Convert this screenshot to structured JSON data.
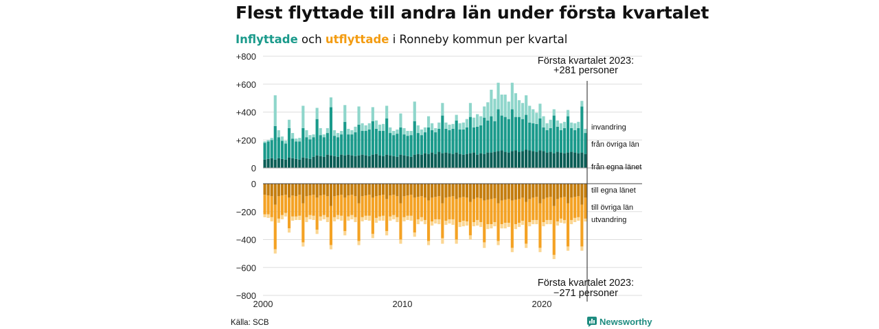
{
  "header": {
    "title": "Flest flyttade till andra län under första kvartalet",
    "subtitle_in": "Inflyttade",
    "subtitle_and": "och",
    "subtitle_out": "utflyttade",
    "subtitle_rest": "i Ronneby kommun per kvartal"
  },
  "footer": {
    "source": "Källa: SCB",
    "brand": "Newsworthy"
  },
  "colors": {
    "in_own": "#0b5e56",
    "in_other": "#1a9a8b",
    "in_immigration": "#8fd6cb",
    "out_own": "#c47d0e",
    "out_other": "#f4a224",
    "out_emigration": "#fbd692",
    "gridline": "#dddddd",
    "marker": "#444444",
    "brand": "#1e8c80"
  },
  "chart_data": {
    "type": "bar",
    "stacked": true,
    "unit": "quarter",
    "x_start": "2000 Q1",
    "x_end": "2023 Q1",
    "x_ticks": [
      "2000",
      "2010",
      "2020"
    ],
    "y_top": {
      "ylim": [
        0,
        800
      ],
      "ticks": [
        "0",
        "+200",
        "+400",
        "+600",
        "+800"
      ]
    },
    "y_bottom": {
      "ylim": [
        -800,
        0
      ],
      "ticks": [
        "0",
        "−200",
        "−400",
        "−600",
        "−800"
      ]
    },
    "grid": true,
    "series_labels": {
      "in_own": "från egna länet",
      "in_other": "från övriga län",
      "in_immigration": "invandring",
      "out_own": "till egna länet",
      "out_other": "till övriga län",
      "out_emigration": "utvandring"
    },
    "annotation_top": {
      "line1": "Första kvartalet 2023:",
      "line2": "+281 personer"
    },
    "annotation_bottom": {
      "line1": "Första kvartalet 2023:",
      "line2": "−271 personer"
    },
    "in_own": [
      60,
      65,
      70,
      60,
      70,
      65,
      60,
      75,
      70,
      65,
      60,
      75,
      70,
      65,
      80,
      90,
      85,
      80,
      95,
      90,
      85,
      80,
      95,
      90,
      95,
      90,
      85,
      90,
      95,
      90,
      85,
      95,
      100,
      90,
      85,
      95,
      90,
      85,
      80,
      95,
      90,
      85,
      80,
      95,
      100,
      95,
      105,
      100,
      110,
      100,
      115,
      105,
      110,
      105,
      100,
      110,
      100,
      95,
      100,
      105,
      110,
      95,
      105,
      100,
      110,
      110,
      115,
      120,
      125,
      115,
      110,
      120,
      125,
      115,
      120,
      130,
      125,
      120,
      115,
      125,
      120,
      110,
      115,
      105,
      115,
      110,
      105,
      110,
      115,
      110,
      105,
      110,
      100
    ],
    "in_other": [
      120,
      125,
      130,
      240,
      150,
      130,
      115,
      210,
      140,
      125,
      130,
      210,
      150,
      140,
      140,
      260,
      150,
      140,
      155,
      345,
      145,
      140,
      145,
      240,
      145,
      150,
      170,
      220,
      170,
      175,
      190,
      240,
      180,
      175,
      180,
      260,
      160,
      150,
      165,
      195,
      150,
      145,
      155,
      240,
      150,
      140,
      150,
      190,
      160,
      155,
      165,
      270,
      170,
      165,
      180,
      230,
      175,
      180,
      190,
      260,
      180,
      200,
      200,
      260,
      230,
      260,
      220,
      300,
      250,
      250,
      240,
      300,
      240,
      250,
      230,
      250,
      200,
      200,
      200,
      230,
      170,
      160,
      170,
      270,
      180,
      160,
      180,
      260,
      170,
      160,
      180,
      330,
      150
    ],
    "in_immigration": [
      10,
      10,
      15,
      220,
      50,
      30,
      20,
      60,
      40,
      20,
      25,
      160,
      50,
      30,
      20,
      80,
      50,
      20,
      35,
      70,
      40,
      30,
      25,
      120,
      40,
      30,
      40,
      130,
      55,
      40,
      45,
      100,
      60,
      45,
      50,
      90,
      40,
      30,
      30,
      100,
      45,
      35,
      30,
      140,
      55,
      40,
      35,
      80,
      50,
      30,
      45,
      90,
      45,
      40,
      35,
      40,
      45,
      50,
      60,
      100,
      70,
      90,
      65,
      80,
      130,
      190,
      160,
      190,
      150,
      160,
      125,
      190,
      170,
      120,
      115,
      140,
      120,
      100,
      80,
      105,
      80,
      50,
      60,
      45,
      45,
      50,
      45,
      45,
      40,
      50,
      45,
      40,
      30
    ],
    "out_own": [
      -80,
      -85,
      -90,
      -150,
      -90,
      -85,
      -80,
      -100,
      -85,
      -90,
      -80,
      -140,
      -90,
      -85,
      -80,
      -100,
      -85,
      -80,
      -90,
      -160,
      -90,
      -85,
      -80,
      -100,
      -85,
      -80,
      -90,
      -140,
      -90,
      -85,
      -80,
      -100,
      -90,
      -85,
      -80,
      -110,
      -85,
      -80,
      -90,
      -140,
      -90,
      -85,
      -80,
      -100,
      -95,
      -90,
      -100,
      -120,
      -100,
      -95,
      -90,
      -140,
      -100,
      -95,
      -90,
      -110,
      -100,
      -95,
      -100,
      -130,
      -110,
      -100,
      -105,
      -120,
      -115,
      -110,
      -105,
      -140,
      -120,
      -115,
      -110,
      -120,
      -115,
      -110,
      -100,
      -130,
      -110,
      -100,
      -95,
      -140,
      -110,
      -100,
      -95,
      -160,
      -110,
      -100,
      -95,
      -140,
      -100,
      -95,
      -90,
      -150,
      -100
    ],
    "out_other": [
      -140,
      -135,
      -150,
      -320,
      -160,
      -140,
      -130,
      -220,
      -150,
      -145,
      -150,
      -280,
      -150,
      -140,
      -150,
      -230,
      -150,
      -145,
      -150,
      -280,
      -150,
      -140,
      -150,
      -240,
      -150,
      -145,
      -150,
      -270,
      -150,
      -145,
      -150,
      -260,
      -155,
      -150,
      -150,
      -230,
      -150,
      -145,
      -150,
      -260,
      -150,
      -145,
      -150,
      -250,
      -160,
      -150,
      -160,
      -290,
      -170,
      -160,
      -165,
      -250,
      -165,
      -160,
      -165,
      -290,
      -175,
      -170,
      -170,
      -240,
      -165,
      -160,
      -170,
      -300,
      -175,
      -180,
      -170,
      -270,
      -170,
      -165,
      -170,
      -340,
      -175,
      -170,
      -165,
      -300,
      -165,
      -160,
      -165,
      -320,
      -165,
      -160,
      -165,
      -350,
      -160,
      -150,
      -165,
      -310,
      -160,
      -150,
      -150,
      -300,
      -150
    ],
    "out_emigration": [
      -20,
      -25,
      -30,
      -30,
      -30,
      -30,
      -25,
      -30,
      -30,
      -25,
      -30,
      -30,
      -35,
      -30,
      -30,
      -30,
      -30,
      -30,
      -35,
      -30,
      -30,
      -30,
      -35,
      -30,
      -30,
      -30,
      -35,
      -30,
      -30,
      -30,
      -35,
      -30,
      -35,
      -30,
      -35,
      -30,
      -30,
      -30,
      -35,
      -30,
      -30,
      -30,
      -35,
      -30,
      -35,
      -30,
      -30,
      -30,
      -30,
      -30,
      -35,
      -40,
      -30,
      -30,
      -40,
      -30,
      -35,
      -40,
      -30,
      -30,
      -30,
      -40,
      -35,
      -40,
      -35,
      -30,
      -30,
      -30,
      -30,
      -40,
      -30,
      -30,
      -35,
      -30,
      -30,
      -30,
      -30,
      -30,
      -30,
      -30,
      -30,
      -30,
      -30,
      -30,
      -30,
      -30,
      -25,
      -30,
      -30,
      -30,
      -25,
      -30,
      -21
    ]
  }
}
